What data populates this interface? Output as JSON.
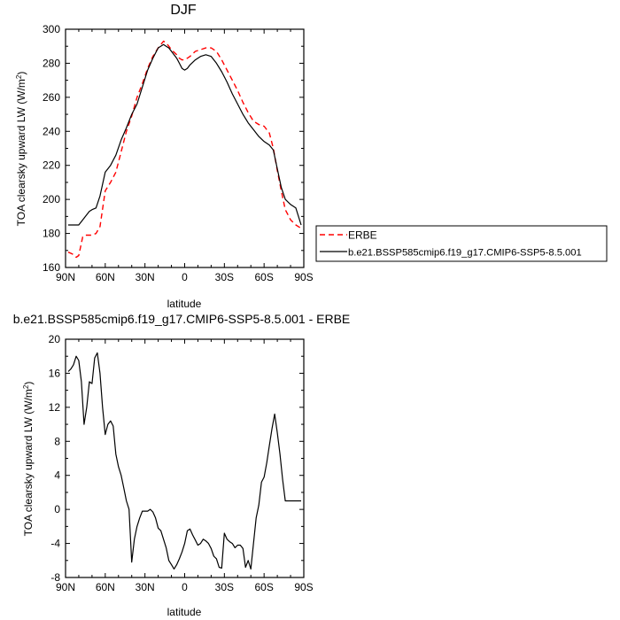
{
  "chart_data": [
    {
      "type": "line",
      "title": "DJF",
      "xlabel": "latitude",
      "ylabel": "TOA clearsky upward LW (W/m",
      "ylabel_sup": "2",
      "ylabel_end": ")",
      "xlim": [
        90,
        -90
      ],
      "ylim": [
        160,
        300
      ],
      "x_ticks": [
        90,
        60,
        30,
        0,
        -30,
        -60,
        -90
      ],
      "x_tick_labels": [
        "90N",
        "60N",
        "30N",
        "0",
        "30S",
        "60S",
        "90S"
      ],
      "y_ticks": [
        160,
        180,
        200,
        220,
        240,
        260,
        280,
        300
      ],
      "y_tick_labels": [
        "160",
        "180",
        "200",
        "220",
        "240",
        "260",
        "280",
        "300"
      ],
      "grid": false,
      "legend_position": "right",
      "series": [
        {
          "name": "ERBE",
          "color": "#ff0000",
          "dash": "dashed",
          "x": [
            88,
            85,
            82,
            80,
            77,
            75,
            72,
            70,
            67,
            64,
            60,
            56,
            52,
            48,
            44,
            40,
            36,
            32,
            28,
            24,
            20,
            16,
            14,
            12,
            10,
            6,
            4,
            2,
            0,
            -2,
            -4,
            -8,
            -12,
            -16,
            -20,
            -24,
            -28,
            -32,
            -36,
            -40,
            -44,
            -48,
            -52,
            -56,
            -60,
            -64,
            -67,
            -70,
            -73,
            -76,
            -80,
            -84,
            -88
          ],
          "y": [
            169,
            168,
            166,
            167,
            178,
            179,
            179,
            179,
            180,
            184,
            205,
            210,
            216,
            228,
            240,
            249,
            260,
            268,
            277,
            284,
            289,
            293,
            292,
            290,
            288,
            285,
            283,
            282,
            282,
            283,
            284,
            287,
            288,
            289,
            289,
            287,
            282,
            276,
            270,
            264,
            257,
            251,
            246,
            244,
            243,
            239,
            230,
            217,
            205,
            194,
            188,
            185,
            183
          ]
        },
        {
          "name": "b.e21.BSSP585cmip6.f19_g17.CMIP6-SSP5-8.5.001",
          "color": "#000000",
          "dash": "solid",
          "x": [
            88,
            85,
            82,
            80,
            77,
            75,
            72,
            70,
            67,
            64,
            60,
            56,
            52,
            48,
            44,
            40,
            36,
            32,
            28,
            24,
            20,
            16,
            14,
            12,
            10,
            6,
            4,
            2,
            0,
            -2,
            -4,
            -8,
            -12,
            -16,
            -20,
            -24,
            -28,
            -32,
            -36,
            -40,
            -44,
            -48,
            -52,
            -56,
            -60,
            -64,
            -67,
            -70,
            -73,
            -76,
            -80,
            -84,
            -88
          ],
          "y": [
            185,
            185,
            185,
            185,
            188,
            190,
            193,
            194,
            195,
            202,
            216,
            220,
            226,
            235,
            242,
            250,
            256,
            266,
            276,
            283,
            289,
            291,
            290,
            289,
            287,
            283,
            280,
            277,
            276,
            277,
            279,
            282,
            284,
            285,
            284,
            280,
            275,
            269,
            262,
            256,
            250,
            245,
            241,
            237,
            234,
            232,
            229,
            218,
            207,
            200,
            197,
            195,
            185
          ]
        }
      ]
    },
    {
      "type": "line",
      "title": "b.e21.BSSP585cmip6.f19_g17.CMIP6-SSP5-8.5.001 - ERBE",
      "xlabel": "latitude",
      "ylabel": "TOA clearsky upward LW (W/m",
      "ylabel_sup": "2",
      "ylabel_end": ")",
      "xlim": [
        90,
        -90
      ],
      "ylim": [
        -8,
        20
      ],
      "x_ticks": [
        90,
        60,
        30,
        0,
        -30,
        -60,
        -90
      ],
      "x_tick_labels": [
        "90N",
        "60N",
        "30N",
        "0",
        "30S",
        "60S",
        "90S"
      ],
      "y_ticks": [
        -8,
        -4,
        0,
        4,
        8,
        12,
        16,
        20
      ],
      "y_tick_labels": [
        "-8",
        "-4",
        "0",
        "4",
        "8",
        "12",
        "16",
        "20"
      ],
      "grid": false,
      "series": [
        {
          "color": "#000000",
          "dash": "solid",
          "x": [
            88,
            86,
            84,
            82,
            80,
            78,
            76,
            74,
            72,
            70,
            68,
            66,
            64,
            62,
            60,
            58,
            56,
            54,
            52,
            50,
            48,
            46,
            44,
            42,
            40,
            38,
            36,
            34,
            32,
            30,
            28,
            26,
            24,
            22,
            20,
            18,
            16,
            14,
            12,
            10,
            8,
            6,
            4,
            2,
            0,
            -2,
            -4,
            -6,
            -8,
            -10,
            -12,
            -14,
            -16,
            -18,
            -20,
            -22,
            -24,
            -26,
            -28,
            -30,
            -32,
            -34,
            -36,
            -38,
            -40,
            -42,
            -44,
            -46,
            -48,
            -50,
            -52,
            -54,
            -56,
            -58,
            -60,
            -62,
            -64,
            -66,
            -68,
            -70,
            -72,
            -74,
            -76,
            -78,
            -80,
            -82,
            -84,
            -86,
            -88
          ],
          "y": [
            16.2,
            16.5,
            17.0,
            18.0,
            17.5,
            15.0,
            10.0,
            12.0,
            15.0,
            14.8,
            17.8,
            18.4,
            16.0,
            12.0,
            8.8,
            10.0,
            10.4,
            9.8,
            6.5,
            5.0,
            4.0,
            2.5,
            1.0,
            0.0,
            -6.2,
            -3.5,
            -2.0,
            -1.0,
            -0.2,
            -0.2,
            -0.2,
            0.0,
            -0.3,
            -1.0,
            -2.2,
            -2.5,
            -3.5,
            -4.5,
            -6.0,
            -6.5,
            -7.0,
            -6.5,
            -5.8,
            -5.0,
            -4.0,
            -2.5,
            -2.3,
            -3.0,
            -3.6,
            -4.2,
            -4.0,
            -3.5,
            -3.7,
            -4.0,
            -4.6,
            -5.5,
            -5.8,
            -6.8,
            -6.9,
            -2.8,
            -3.5,
            -3.8,
            -4.0,
            -4.5,
            -4.2,
            -4.2,
            -4.6,
            -6.8,
            -6.0,
            -7.0,
            -4.0,
            -1.0,
            0.5,
            3.2,
            3.8,
            5.5,
            7.5,
            9.5,
            11.2,
            9.0,
            6.5,
            3.5,
            1.0,
            1.0,
            1.0,
            1.0,
            1.0,
            1.0,
            1.0
          ]
        }
      ]
    }
  ]
}
